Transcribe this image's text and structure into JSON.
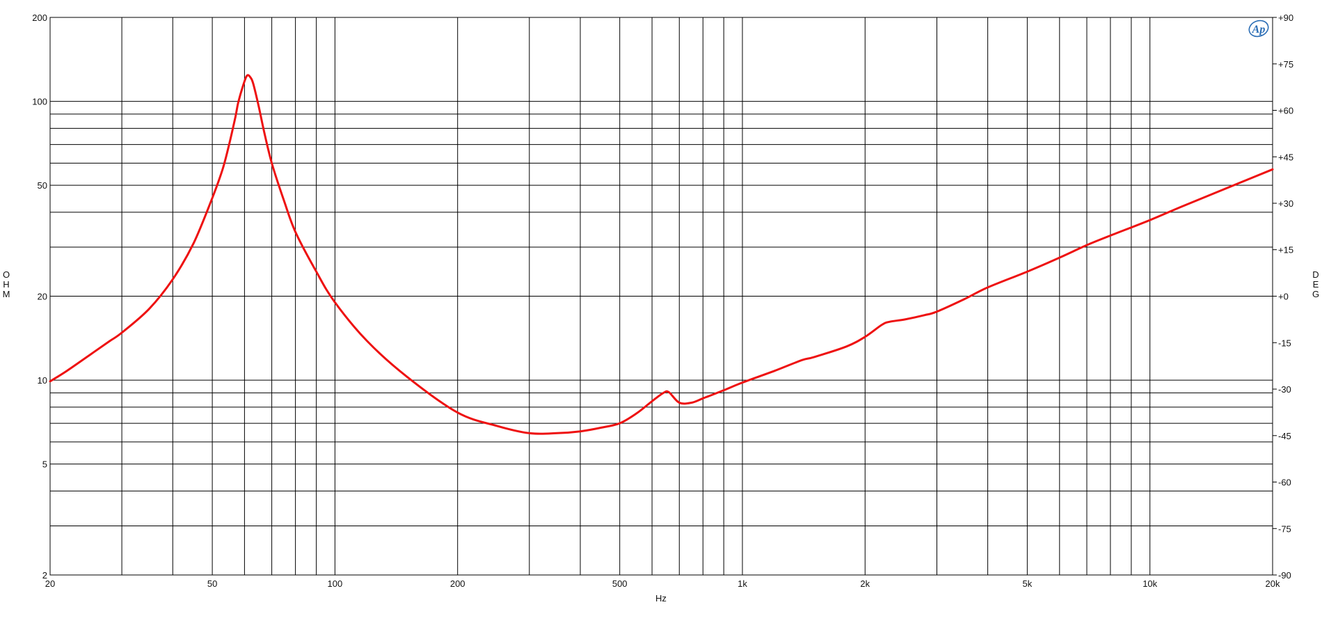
{
  "chart_data": {
    "type": "line",
    "title": "",
    "xlabel": "Hz",
    "ylabel": "OHM",
    "y2label": "DEG",
    "xscale": "log",
    "yscale": "log",
    "xlim": [
      20,
      20000
    ],
    "ylim": [
      2,
      200
    ],
    "y2lim": [
      -90,
      90
    ],
    "grid": true,
    "legend": "none",
    "x_tick_labels": [
      {
        "value": 20,
        "label": "20"
      },
      {
        "value": 50,
        "label": "50"
      },
      {
        "value": 100,
        "label": "100"
      },
      {
        "value": 200,
        "label": "200"
      },
      {
        "value": 500,
        "label": "500"
      },
      {
        "value": 1000,
        "label": "1k"
      },
      {
        "value": 2000,
        "label": "2k"
      },
      {
        "value": 5000,
        "label": "5k"
      },
      {
        "value": 10000,
        "label": "10k"
      },
      {
        "value": 20000,
        "label": "20k"
      }
    ],
    "y_tick_labels": [
      {
        "value": 200,
        "label": "200"
      },
      {
        "value": 100,
        "label": "100"
      },
      {
        "value": 50,
        "label": "50"
      },
      {
        "value": 20,
        "label": "20"
      },
      {
        "value": 10,
        "label": "10"
      },
      {
        "value": 5,
        "label": "5"
      },
      {
        "value": 2,
        "label": "2"
      }
    ],
    "y2_tick_labels": [
      {
        "value": 90,
        "label": "+90"
      },
      {
        "value": 75,
        "label": "+75"
      },
      {
        "value": 60,
        "label": "+60"
      },
      {
        "value": 45,
        "label": "+45"
      },
      {
        "value": 30,
        "label": "+30"
      },
      {
        "value": 15,
        "label": "+15"
      },
      {
        "value": 0,
        "label": "+0"
      },
      {
        "value": -15,
        "label": "-15"
      },
      {
        "value": -30,
        "label": "-30"
      },
      {
        "value": -45,
        "label": "-45"
      },
      {
        "value": -60,
        "label": "-60"
      },
      {
        "value": -75,
        "label": "-75"
      },
      {
        "value": -90,
        "label": "-90"
      }
    ],
    "x_gridlines": [
      30,
      40,
      50,
      60,
      70,
      80,
      90,
      100,
      200,
      300,
      400,
      500,
      600,
      700,
      800,
      900,
      1000,
      2000,
      3000,
      4000,
      5000,
      6000,
      7000,
      8000,
      9000,
      10000
    ],
    "y_gridlines": [
      3,
      4,
      5,
      6,
      7,
      8,
      9,
      10,
      20,
      30,
      40,
      50,
      60,
      70,
      80,
      90,
      100
    ],
    "series": [
      {
        "name": "",
        "color": "#ee1111",
        "x": [
          20,
          22,
          25,
          28,
          30,
          35,
          40,
          45,
          50,
          53,
          55,
          57,
          58,
          60,
          61,
          62,
          63,
          65,
          67,
          70,
          75,
          80,
          90,
          100,
          120,
          150,
          200,
          250,
          300,
          350,
          400,
          450,
          500,
          550,
          600,
          640,
          660,
          700,
          750,
          800,
          900,
          1000,
          1200,
          1400,
          1500,
          1800,
          2000,
          2200,
          2300,
          2500,
          2800,
          3000,
          3500,
          4000,
          5000,
          6000,
          7000,
          8000,
          10000,
          12000,
          15000,
          20000
        ],
        "y": [
          9.9,
          10.8,
          12.3,
          13.8,
          14.8,
          18.0,
          23.0,
          31.0,
          45.0,
          57.0,
          70.0,
          88.0,
          100.0,
          118.0,
          124.0,
          122.0,
          116.0,
          96.0,
          78.0,
          60.0,
          44.0,
          34.0,
          24.5,
          19.0,
          13.8,
          10.3,
          7.65,
          6.85,
          6.45,
          6.45,
          6.55,
          6.75,
          7.0,
          7.6,
          8.4,
          9.0,
          9.05,
          8.3,
          8.3,
          8.6,
          9.2,
          9.8,
          10.8,
          11.8,
          12.1,
          13.2,
          14.3,
          15.8,
          16.2,
          16.5,
          17.1,
          17.6,
          19.5,
          21.5,
          24.5,
          27.5,
          30.5,
          33.0,
          37.5,
          42.0,
          48.0,
          57.0
        ]
      }
    ]
  },
  "logo": {
    "text": "Ap",
    "color": "#2a6db5"
  }
}
